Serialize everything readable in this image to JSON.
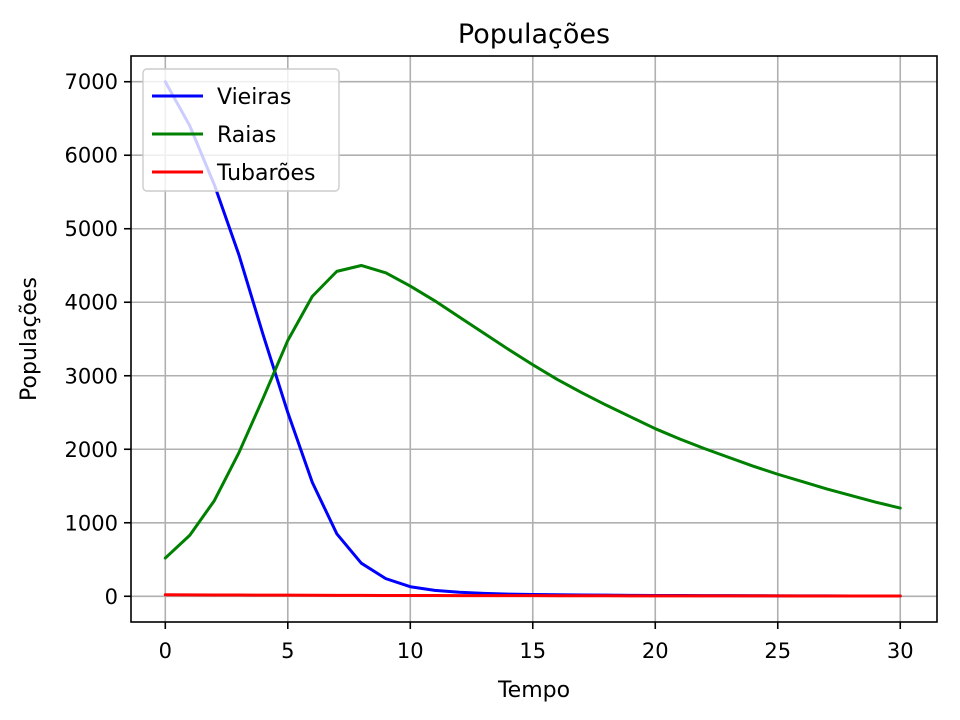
{
  "chart_data": {
    "type": "line",
    "title": "Populações",
    "xlabel": "Tempo",
    "ylabel": "Populações",
    "xlim": [
      -1.4,
      31.5
    ],
    "ylim": [
      -350,
      7350
    ],
    "xticks": [
      0,
      5,
      10,
      15,
      20,
      25,
      30
    ],
    "yticks": [
      0,
      1000,
      2000,
      3000,
      4000,
      5000,
      6000,
      7000
    ],
    "grid": true,
    "legend": {
      "position": "top-left"
    },
    "x": [
      0,
      1,
      2,
      3,
      4,
      5,
      6,
      7,
      8,
      9,
      10,
      11,
      12,
      13,
      14,
      15,
      16,
      17,
      18,
      19,
      20,
      21,
      22,
      23,
      24,
      25,
      26,
      27,
      28,
      29,
      30
    ],
    "series": [
      {
        "name": "Vieiras",
        "color": "#0000ff",
        "values": [
          7000,
          6400,
          5600,
          4650,
          3550,
          2500,
          1550,
          850,
          450,
          240,
          130,
          80,
          55,
          40,
          30,
          25,
          20,
          17,
          15,
          13,
          11,
          10,
          9,
          8,
          7,
          6,
          5,
          5,
          4,
          4,
          3
        ]
      },
      {
        "name": "Raias",
        "color": "#008000",
        "values": [
          520,
          830,
          1300,
          1950,
          2700,
          3480,
          4080,
          4420,
          4500,
          4400,
          4220,
          4020,
          3800,
          3580,
          3360,
          3150,
          2950,
          2770,
          2600,
          2440,
          2280,
          2140,
          2010,
          1890,
          1770,
          1660,
          1560,
          1460,
          1370,
          1280,
          1200
        ]
      },
      {
        "name": "Tubarões",
        "color": "#ff0000",
        "values": [
          20,
          19,
          18,
          17,
          16,
          15,
          14,
          13,
          12,
          11,
          10,
          10,
          9,
          9,
          8,
          8,
          7,
          7,
          7,
          6,
          6,
          6,
          5,
          5,
          5,
          5,
          4,
          4,
          4,
          4,
          4
        ]
      }
    ]
  }
}
